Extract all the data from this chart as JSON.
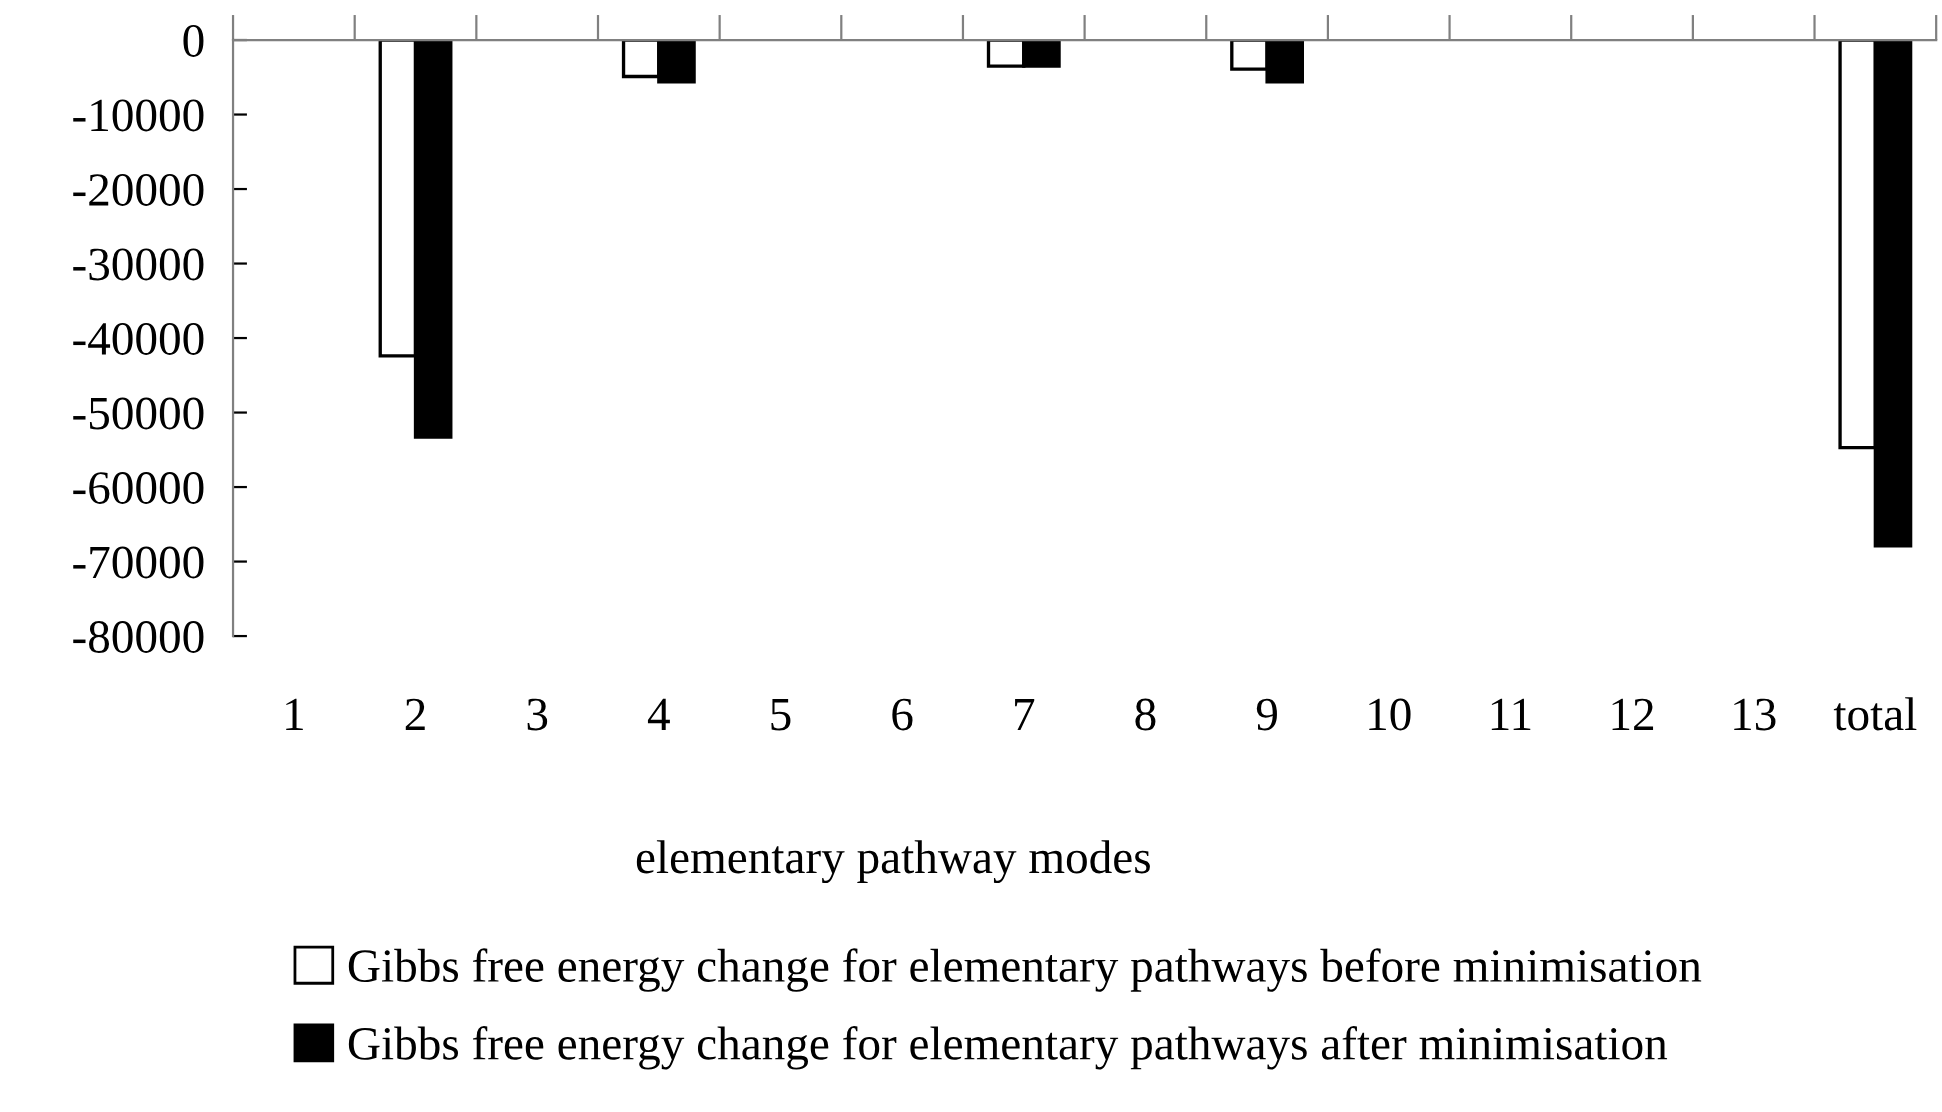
{
  "chart_data": {
    "type": "bar",
    "xlabel": "elementary pathway modes",
    "categories": [
      "1",
      "2",
      "3",
      "4",
      "5",
      "6",
      "7",
      "8",
      "9",
      "10",
      "11",
      "12",
      "13",
      "total"
    ],
    "series": [
      {
        "name": "Gibbs free energy change for elementary pathways before minimisation",
        "color": "#ffffff",
        "values": [
          null,
          -42400,
          null,
          -4900,
          null,
          null,
          -3500,
          null,
          -3900,
          null,
          null,
          null,
          null,
          -54700
        ]
      },
      {
        "name": "Gibbs free energy change for elementary pathways after minimisation",
        "color": "#000000",
        "values": [
          null,
          -53300,
          null,
          -5600,
          null,
          null,
          -3500,
          null,
          -5600,
          null,
          null,
          null,
          null,
          -67900
        ]
      }
    ],
    "ylim": [
      -80000,
      0
    ],
    "yticks": [
      0,
      -10000,
      -20000,
      -30000,
      -40000,
      -50000,
      -60000,
      -70000,
      -80000
    ],
    "grid": false,
    "legend": "bottom"
  }
}
